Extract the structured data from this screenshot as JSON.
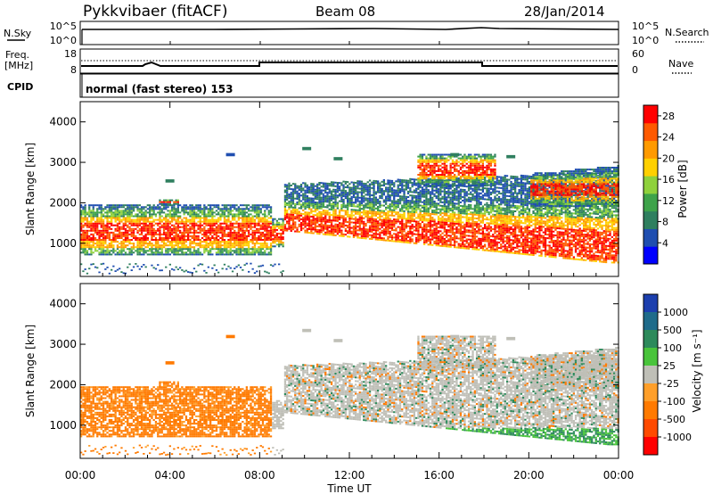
{
  "header": {
    "station": "Pykkvibaer (fitACF)",
    "beam": "Beam 08",
    "date": "28/Jan/2014"
  },
  "side_labels": {
    "nsky": "N.Sky",
    "nsearch": "N.Search",
    "freq_line1": "Freq.",
    "freq_line2": "[MHz]",
    "cpid": "CPID",
    "nave": "Nave"
  },
  "cpid_text": "normal (fast stereo) 153",
  "colors": {
    "power": [
      "#0000ff",
      "#1f4eb0",
      "#2f7f5f",
      "#3ea34a",
      "#8fd13c",
      "#ffd000",
      "#ff9a00",
      "#ff5a00",
      "#ff0000"
    ],
    "velocity": [
      "#1c3fae",
      "#1f6b8a",
      "#2d8a5b",
      "#49c43b",
      "#bfbfb7",
      "#ff9f2a",
      "#ff7a00",
      "#ff4a00",
      "#ff0000"
    ]
  },
  "chart_data": [
    {
      "type": "line",
      "name": "noise",
      "left_axis_label": "N.Sky",
      "right_axis_label": "N.Search",
      "left_ticks": [
        "10^5",
        "10^0"
      ],
      "right_ticks": [
        "10^5",
        "10^0"
      ],
      "x_range_hours": [
        0,
        24
      ],
      "series_description_points": [
        [
          0,
          1.0
        ],
        [
          24,
          1.0
        ]
      ]
    },
    {
      "type": "line",
      "name": "frequency_nave",
      "left_ticks": [
        "18",
        "8"
      ],
      "right_ticks": [
        "60",
        "0"
      ],
      "frequency_mhz": [
        [
          0,
          9.8
        ],
        [
          3.0,
          9.9
        ],
        [
          8.0,
          9.9
        ],
        [
          8.05,
          11.2
        ],
        [
          18.0,
          11.2
        ],
        [
          18.05,
          9.8
        ],
        [
          24,
          9.8
        ]
      ],
      "nave": [
        [
          0,
          40
        ],
        [
          24,
          40
        ]
      ],
      "x_range_hours": [
        0,
        24
      ]
    },
    {
      "type": "heatmap",
      "name": "power",
      "ylabel": "Slant Range [km]",
      "y_ticks": [
        1000,
        2000,
        3000,
        4000
      ],
      "ylim": [
        180,
        4500
      ],
      "colorbar_label": "Power [dB]",
      "colorbar_ticks": [
        4,
        8,
        12,
        16,
        20,
        24,
        28
      ],
      "colorbar_range": [
        0,
        30
      ],
      "x_range_hours": [
        0,
        24
      ]
    },
    {
      "type": "heatmap",
      "name": "velocity",
      "ylabel": "Slant Range [km]",
      "y_ticks": [
        1000,
        2000,
        3000,
        4000
      ],
      "ylim": [
        180,
        4500
      ],
      "colorbar_label": "Velocity [m s⁻¹]",
      "colorbar_ticks": [
        "1000",
        "500",
        "100",
        "25",
        "-25",
        "-100",
        "-500",
        "-1000"
      ],
      "x_range_hours": [
        0,
        24
      ],
      "xlabel": "Time UT",
      "x_tick_labels": [
        "00:00",
        "04:00",
        "08:00",
        "12:00",
        "16:00",
        "20:00",
        "00:00"
      ]
    }
  ]
}
